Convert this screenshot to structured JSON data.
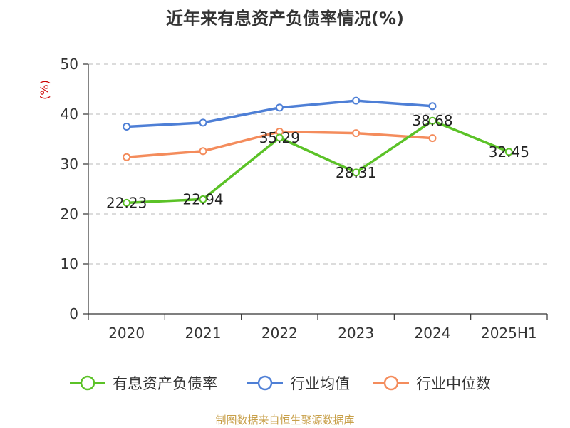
{
  "chart_data": {
    "type": "line",
    "title": "近年来有息资产负债率情况(%)",
    "y_unit": "(%)",
    "categories": [
      "2020",
      "2021",
      "2022",
      "2023",
      "2024",
      "2025H1"
    ],
    "ylim": [
      0,
      50
    ],
    "yticks": [
      0,
      10,
      20,
      30,
      40,
      50
    ],
    "grid": true,
    "legend_position": "bottom",
    "series": [
      {
        "name": "有息资产负债率",
        "color": "#5bc227",
        "values": [
          22.23,
          22.94,
          35.29,
          28.31,
          38.68,
          32.45
        ],
        "labels": [
          "22.23",
          "22.94",
          "35.29",
          "28.31",
          "38.68",
          "32.45"
        ]
      },
      {
        "name": "行业均值",
        "color": "#4e7fd6",
        "values": [
          37.5,
          38.3,
          41.3,
          42.7,
          41.6,
          null
        ]
      },
      {
        "name": "行业中位数",
        "color": "#f48c5c",
        "values": [
          31.4,
          32.6,
          36.5,
          36.2,
          35.2,
          null
        ]
      }
    ]
  },
  "source": "制图数据来自恒生聚源数据库"
}
